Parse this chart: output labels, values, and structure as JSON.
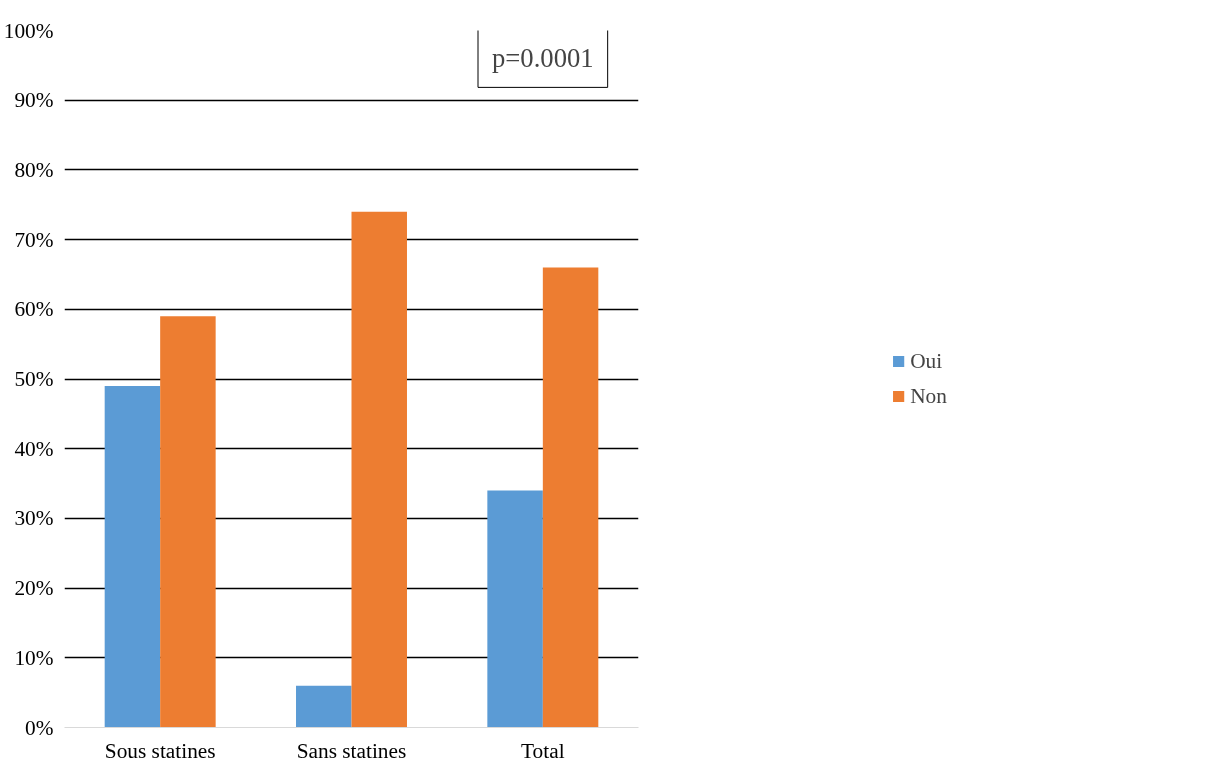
{
  "chart_data": {
    "type": "bar",
    "categories": [
      "Sous statines",
      "Sans statines",
      "Total"
    ],
    "series": [
      {
        "name": "Oui",
        "color": "#5b9bd5",
        "values": [
          49,
          6,
          34
        ]
      },
      {
        "name": "Non",
        "color": "#ed7d31",
        "values": [
          59,
          74,
          66
        ]
      }
    ],
    "ylim": [
      0,
      100
    ],
    "yticks": [
      {
        "value": 0,
        "label": "0%"
      },
      {
        "value": 10,
        "label": "10%"
      },
      {
        "value": 20,
        "label": "20%"
      },
      {
        "value": 30,
        "label": "30%"
      },
      {
        "value": 40,
        "label": "40%"
      },
      {
        "value": 50,
        "label": "50%"
      },
      {
        "value": 60,
        "label": "60%"
      },
      {
        "value": 70,
        "label": "70%"
      },
      {
        "value": 80,
        "label": "80%"
      },
      {
        "value": 90,
        "label": "90%"
      },
      {
        "value": 100,
        "label": "100%"
      }
    ],
    "grid": "y",
    "legend": "right",
    "annotations": [
      "p=0.0001"
    ]
  }
}
